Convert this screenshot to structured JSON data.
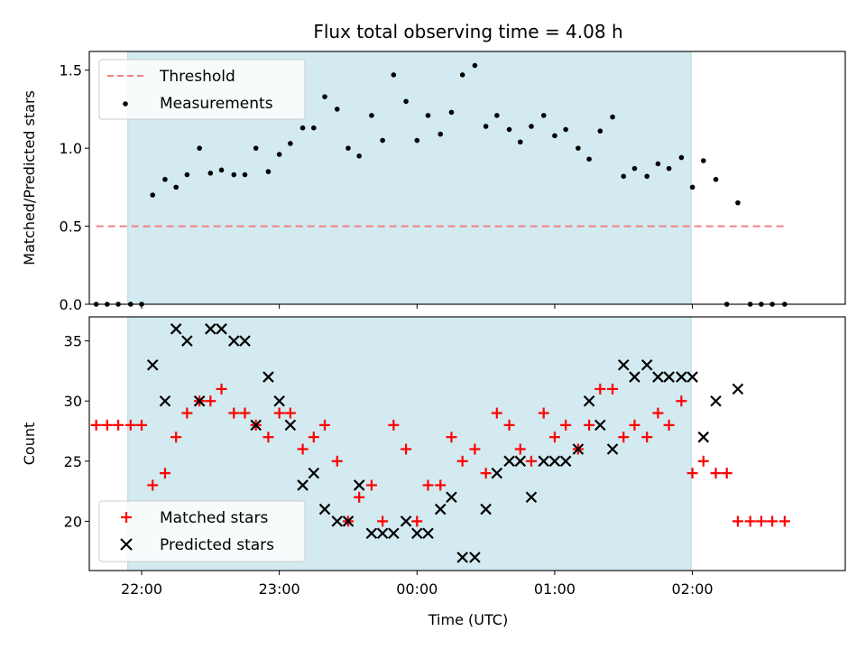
{
  "figure_title": "Flux total observing time = 4.08 h",
  "chart_data": [
    {
      "type": "scatter",
      "panel": "top",
      "title": "Flux total observing time = 4.08 h",
      "xlabel": "",
      "ylabel": "Matched/Predicted stars",
      "xlim": [
        -0.38,
        5.11
      ],
      "ylim": [
        0.0,
        1.62
      ],
      "yticks": [
        0.0,
        0.5,
        1.0,
        1.5
      ],
      "ytick_labels": [
        "0.0",
        "0.5",
        "1.0",
        "1.5"
      ],
      "grid": false,
      "legend_position": "top-left",
      "shaded_span": {
        "start": -0.1,
        "end": 3.99,
        "color": "#d3eaf0"
      },
      "threshold": {
        "name": "Threshold",
        "y": 0.5,
        "x_start": -0.33,
        "x_end": 4.67,
        "color": "#f08080",
        "style": "dashed"
      },
      "series": [
        {
          "name": "Measurements",
          "color": "#000000",
          "marker": "dot",
          "points": [
            [
              -0.33,
              0.0
            ],
            [
              -0.25,
              0.0
            ],
            [
              -0.17,
              0.0
            ],
            [
              -0.08,
              0.0
            ],
            [
              0.0,
              0.0
            ],
            [
              0.08,
              0.7
            ],
            [
              0.17,
              0.8
            ],
            [
              0.25,
              0.75
            ],
            [
              0.33,
              0.83
            ],
            [
              0.42,
              1.0
            ],
            [
              0.5,
              0.84
            ],
            [
              0.58,
              0.86
            ],
            [
              0.67,
              0.83
            ],
            [
              0.75,
              0.83
            ],
            [
              0.83,
              1.0
            ],
            [
              0.92,
              0.85
            ],
            [
              1.0,
              0.96
            ],
            [
              1.08,
              1.03
            ],
            [
              1.17,
              1.13
            ],
            [
              1.25,
              1.13
            ],
            [
              1.33,
              1.33
            ],
            [
              1.42,
              1.25
            ],
            [
              1.5,
              1.0
            ],
            [
              1.58,
              0.95
            ],
            [
              1.67,
              1.21
            ],
            [
              1.75,
              1.05
            ],
            [
              1.83,
              1.47
            ],
            [
              1.92,
              1.3
            ],
            [
              2.0,
              1.05
            ],
            [
              2.08,
              1.21
            ],
            [
              2.17,
              1.09
            ],
            [
              2.25,
              1.23
            ],
            [
              2.33,
              1.47
            ],
            [
              2.42,
              1.53
            ],
            [
              2.5,
              1.14
            ],
            [
              2.58,
              1.21
            ],
            [
              2.67,
              1.12
            ],
            [
              2.75,
              1.04
            ],
            [
              2.83,
              1.14
            ],
            [
              2.92,
              1.21
            ],
            [
              3.0,
              1.08
            ],
            [
              3.08,
              1.12
            ],
            [
              3.17,
              1.0
            ],
            [
              3.25,
              0.93
            ],
            [
              3.33,
              1.11
            ],
            [
              3.42,
              1.2
            ],
            [
              3.5,
              0.82
            ],
            [
              3.58,
              0.87
            ],
            [
              3.67,
              0.82
            ],
            [
              3.75,
              0.9
            ],
            [
              3.83,
              0.87
            ],
            [
              3.92,
              0.94
            ],
            [
              4.0,
              0.75
            ],
            [
              4.08,
              0.92
            ],
            [
              4.17,
              0.8
            ],
            [
              4.25,
              0.0
            ],
            [
              4.33,
              0.65
            ],
            [
              4.42,
              0.0
            ],
            [
              4.5,
              0.0
            ],
            [
              4.58,
              0.0
            ],
            [
              4.67,
              0.0
            ]
          ]
        }
      ]
    },
    {
      "type": "scatter",
      "panel": "bottom",
      "xlabel": "Time (UTC)",
      "ylabel": "Count",
      "xlim": [
        -0.38,
        5.11
      ],
      "ylim": [
        15.9,
        37.0
      ],
      "yticks": [
        20,
        25,
        30,
        35
      ],
      "ytick_labels": [
        "20",
        "25",
        "30",
        "35"
      ],
      "xticks": [
        0,
        1,
        2,
        3,
        4
      ],
      "xtick_labels": [
        "22:00",
        "23:00",
        "00:00",
        "01:00",
        "02:00"
      ],
      "grid": false,
      "legend_position": "bottom-left",
      "shaded_span": {
        "start": -0.1,
        "end": 3.99,
        "color": "#d3eaf0"
      },
      "series": [
        {
          "name": "Matched stars",
          "color": "#ff0000",
          "marker": "plus",
          "points": [
            [
              -0.33,
              28
            ],
            [
              -0.25,
              28
            ],
            [
              -0.17,
              28
            ],
            [
              -0.08,
              28
            ],
            [
              0.0,
              28
            ],
            [
              0.08,
              23
            ],
            [
              0.17,
              24
            ],
            [
              0.25,
              27
            ],
            [
              0.33,
              29
            ],
            [
              0.42,
              30
            ],
            [
              0.5,
              30
            ],
            [
              0.58,
              31
            ],
            [
              0.67,
              29
            ],
            [
              0.75,
              29
            ],
            [
              0.83,
              28
            ],
            [
              0.92,
              27
            ],
            [
              1.0,
              29
            ],
            [
              1.08,
              29
            ],
            [
              1.17,
              26
            ],
            [
              1.25,
              27
            ],
            [
              1.33,
              28
            ],
            [
              1.42,
              25
            ],
            [
              1.5,
              20
            ],
            [
              1.58,
              22
            ],
            [
              1.67,
              23
            ],
            [
              1.75,
              20
            ],
            [
              1.83,
              28
            ],
            [
              1.92,
              26
            ],
            [
              2.0,
              20
            ],
            [
              2.08,
              23
            ],
            [
              2.17,
              23
            ],
            [
              2.25,
              27
            ],
            [
              2.33,
              25
            ],
            [
              2.42,
              26
            ],
            [
              2.5,
              24
            ],
            [
              2.58,
              29
            ],
            [
              2.67,
              28
            ],
            [
              2.75,
              26
            ],
            [
              2.83,
              25
            ],
            [
              2.92,
              29
            ],
            [
              3.0,
              27
            ],
            [
              3.08,
              28
            ],
            [
              3.17,
              26
            ],
            [
              3.25,
              28
            ],
            [
              3.33,
              31
            ],
            [
              3.42,
              31
            ],
            [
              3.5,
              27
            ],
            [
              3.58,
              28
            ],
            [
              3.67,
              27
            ],
            [
              3.75,
              29
            ],
            [
              3.83,
              28
            ],
            [
              3.92,
              30
            ],
            [
              4.0,
              24
            ],
            [
              4.08,
              25
            ],
            [
              4.17,
              24
            ],
            [
              4.25,
              24
            ],
            [
              4.33,
              20
            ],
            [
              4.42,
              20
            ],
            [
              4.5,
              20
            ],
            [
              4.58,
              20
            ],
            [
              4.67,
              20
            ]
          ]
        },
        {
          "name": "Predicted stars",
          "color": "#000000",
          "marker": "x",
          "points": [
            [
              0.08,
              33
            ],
            [
              0.17,
              30
            ],
            [
              0.25,
              36
            ],
            [
              0.33,
              35
            ],
            [
              0.42,
              30
            ],
            [
              0.5,
              36
            ],
            [
              0.58,
              36
            ],
            [
              0.67,
              35
            ],
            [
              0.75,
              35
            ],
            [
              0.83,
              28
            ],
            [
              0.92,
              32
            ],
            [
              1.0,
              30
            ],
            [
              1.08,
              28
            ],
            [
              1.17,
              23
            ],
            [
              1.25,
              24
            ],
            [
              1.33,
              21
            ],
            [
              1.42,
              20
            ],
            [
              1.5,
              20
            ],
            [
              1.58,
              23
            ],
            [
              1.67,
              19
            ],
            [
              1.75,
              19
            ],
            [
              1.83,
              19
            ],
            [
              1.92,
              20
            ],
            [
              2.0,
              19
            ],
            [
              2.08,
              19
            ],
            [
              2.17,
              21
            ],
            [
              2.25,
              22
            ],
            [
              2.33,
              17
            ],
            [
              2.42,
              17
            ],
            [
              2.5,
              21
            ],
            [
              2.58,
              24
            ],
            [
              2.67,
              25
            ],
            [
              2.75,
              25
            ],
            [
              2.83,
              22
            ],
            [
              2.92,
              25
            ],
            [
              3.0,
              25
            ],
            [
              3.08,
              25
            ],
            [
              3.17,
              26
            ],
            [
              3.25,
              30
            ],
            [
              3.33,
              28
            ],
            [
              3.42,
              26
            ],
            [
              3.5,
              33
            ],
            [
              3.58,
              32
            ],
            [
              3.67,
              33
            ],
            [
              3.75,
              32
            ],
            [
              3.83,
              32
            ],
            [
              3.92,
              32
            ],
            [
              4.0,
              32
            ],
            [
              4.08,
              27
            ],
            [
              4.17,
              30
            ],
            [
              4.33,
              31
            ]
          ]
        }
      ]
    }
  ]
}
